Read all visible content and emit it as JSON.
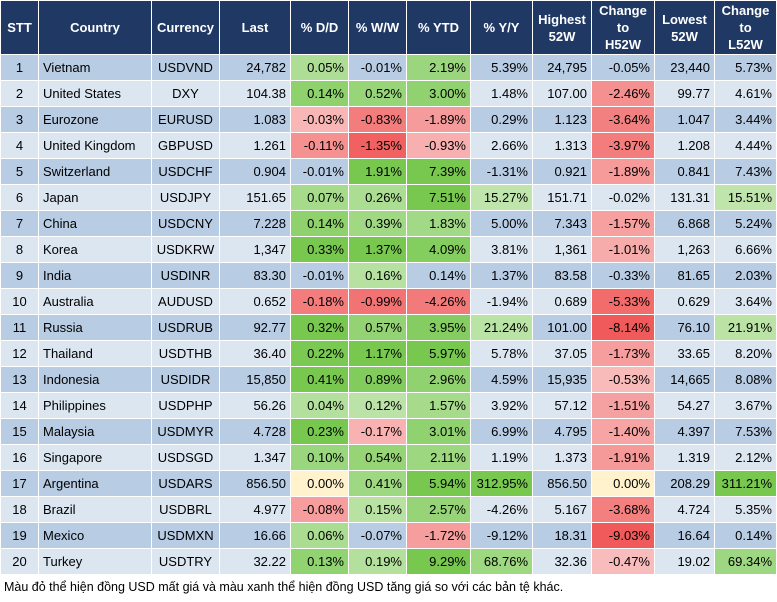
{
  "table": {
    "header": [
      "STT",
      "Country",
      "Currency",
      "Last",
      "% D/D",
      "% W/W",
      "% YTD",
      "% Y/Y",
      "Highest\n52W",
      "Change\nto\nH52W",
      "Lowest\n52W",
      "Change\nto\nL52W"
    ],
    "rows": [
      [
        "1",
        "Vietnam",
        "USDVND",
        "24,782",
        "0.05%",
        "-0.01%",
        "2.19%",
        "5.39%",
        "24,795",
        "-0.05%",
        "23,440",
        "5.73%"
      ],
      [
        "2",
        "United States",
        "DXY",
        "104.38",
        "0.14%",
        "0.52%",
        "3.00%",
        "1.48%",
        "107.00",
        "-2.46%",
        "99.77",
        "4.61%"
      ],
      [
        "3",
        "Eurozone",
        "EURUSD",
        "1.083",
        "-0.03%",
        "-0.83%",
        "-1.89%",
        "0.29%",
        "1.123",
        "-3.64%",
        "1.047",
        "3.44%"
      ],
      [
        "4",
        "United Kingdom",
        "GBPUSD",
        "1.261",
        "-0.11%",
        "-1.35%",
        "-0.93%",
        "2.66%",
        "1.313",
        "-3.97%",
        "1.208",
        "4.44%"
      ],
      [
        "5",
        "Switzerland",
        "USDCHF",
        "0.904",
        "-0.01%",
        "1.91%",
        "7.39%",
        "-1.31%",
        "0.921",
        "-1.89%",
        "0.841",
        "7.43%"
      ],
      [
        "6",
        "Japan",
        "USDJPY",
        "151.65",
        "0.07%",
        "0.26%",
        "7.51%",
        "15.27%",
        "151.71",
        "-0.02%",
        "131.31",
        "15.51%"
      ],
      [
        "7",
        "China",
        "USDCNY",
        "7.228",
        "0.14%",
        "0.39%",
        "1.83%",
        "5.00%",
        "7.343",
        "-1.57%",
        "6.868",
        "5.24%"
      ],
      [
        "8",
        "Korea",
        "USDKRW",
        "1,347",
        "0.33%",
        "1.37%",
        "4.09%",
        "3.81%",
        "1,361",
        "-1.01%",
        "1,263",
        "6.66%"
      ],
      [
        "9",
        "India",
        "USDINR",
        "83.30",
        "-0.01%",
        "0.16%",
        "0.14%",
        "1.37%",
        "83.58",
        "-0.33%",
        "81.65",
        "2.03%"
      ],
      [
        "10",
        "Australia",
        "AUDUSD",
        "0.652",
        "-0.18%",
        "-0.99%",
        "-4.26%",
        "-1.94%",
        "0.689",
        "-5.33%",
        "0.629",
        "3.64%"
      ],
      [
        "11",
        "Russia",
        "USDRUB",
        "92.77",
        "0.32%",
        "0.57%",
        "3.95%",
        "21.24%",
        "101.00",
        "-8.14%",
        "76.10",
        "21.91%"
      ],
      [
        "12",
        "Thailand",
        "USDTHB",
        "36.40",
        "0.22%",
        "1.17%",
        "5.97%",
        "5.78%",
        "37.05",
        "-1.73%",
        "33.65",
        "8.20%"
      ],
      [
        "13",
        "Indonesia",
        "USDIDR",
        "15,850",
        "0.41%",
        "0.89%",
        "2.96%",
        "4.59%",
        "15,935",
        "-0.53%",
        "14,665",
        "8.08%"
      ],
      [
        "14",
        "Philippines",
        "USDPHP",
        "56.26",
        "0.04%",
        "0.12%",
        "1.57%",
        "3.92%",
        "57.12",
        "-1.51%",
        "54.27",
        "3.67%"
      ],
      [
        "15",
        "Malaysia",
        "USDMYR",
        "4.728",
        "0.23%",
        "-0.17%",
        "3.01%",
        "6.99%",
        "4.795",
        "-1.40%",
        "4.397",
        "7.53%"
      ],
      [
        "16",
        "Singapore",
        "USDSGD",
        "1.347",
        "0.10%",
        "0.54%",
        "2.11%",
        "1.19%",
        "1.373",
        "-1.91%",
        "1.319",
        "2.12%"
      ],
      [
        "17",
        "Argentina",
        "USDARS",
        "856.50",
        "0.00%",
        "0.41%",
        "5.94%",
        "312.95%",
        "856.50",
        "0.00%",
        "208.29",
        "311.21%"
      ],
      [
        "18",
        "Brazil",
        "USDBRL",
        "4.977",
        "-0.08%",
        "0.15%",
        "2.57%",
        "-4.26%",
        "5.167",
        "-3.68%",
        "4.724",
        "5.35%"
      ],
      [
        "19",
        "Mexico",
        "USDMXN",
        "16.66",
        "0.06%",
        "-0.07%",
        "-1.72%",
        "-9.12%",
        "18.31",
        "-9.03%",
        "16.64",
        "0.14%"
      ],
      [
        "20",
        "Turkey",
        "USDTRY",
        "32.22",
        "0.13%",
        "0.19%",
        "9.29%",
        "68.76%",
        "32.36",
        "-0.47%",
        "19.02",
        "69.34%"
      ]
    ]
  },
  "note": "Màu đỏ thể hiện đồng USD mất giá và màu xanh thể hiện đồng USD tăng giá so với các bản tệ khác."
}
